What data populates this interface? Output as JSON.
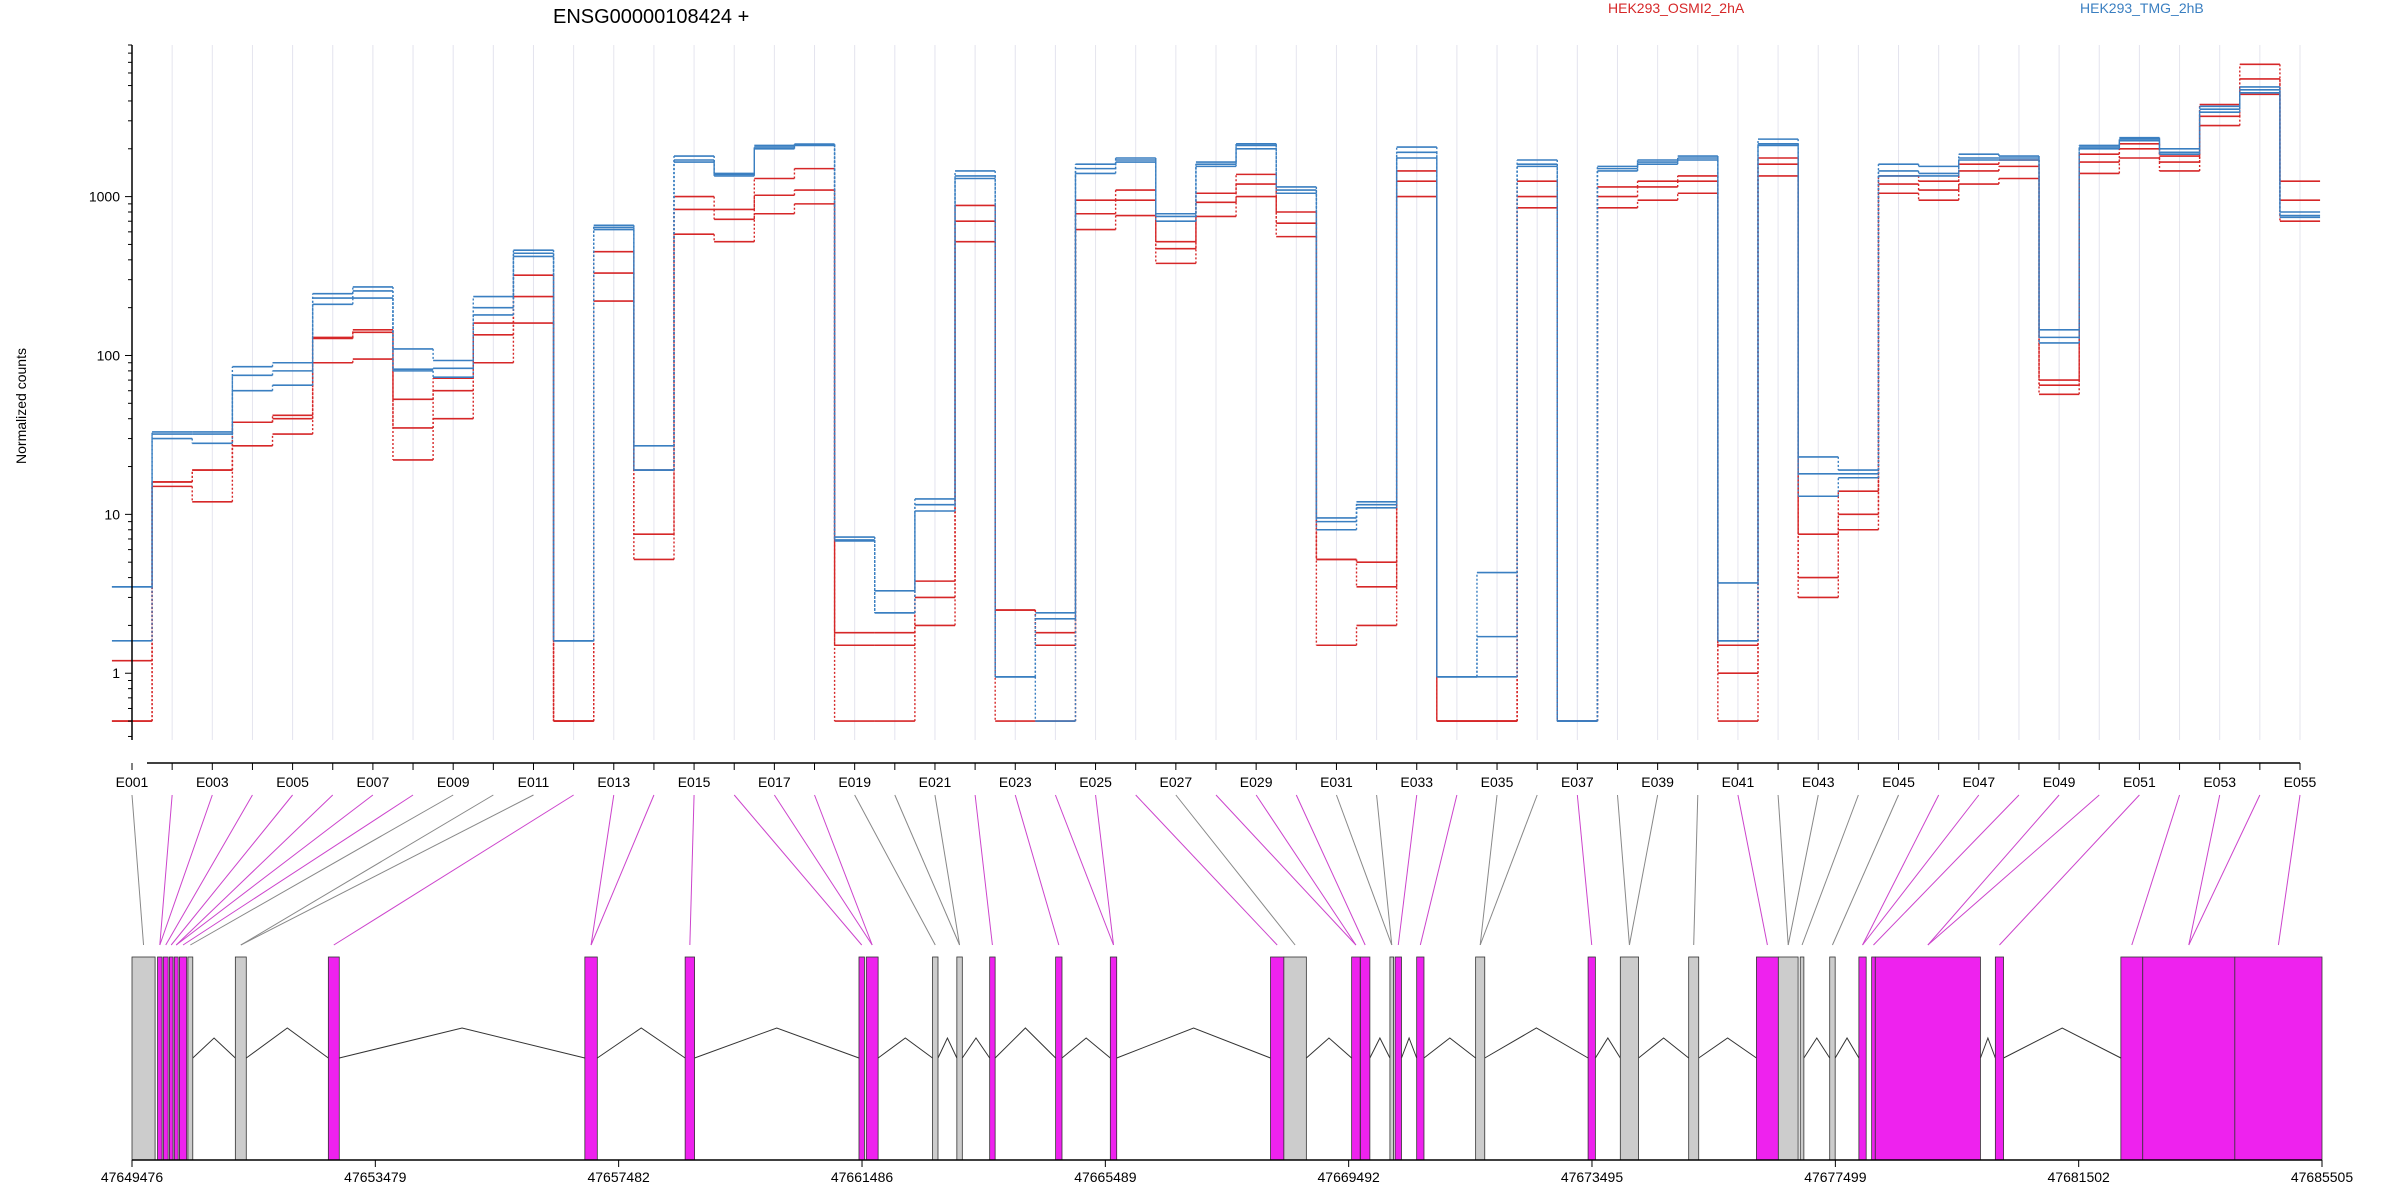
{
  "colors": {
    "group_a": "#d62728",
    "group_b": "#3a7fc1",
    "highlight": "#ee22ee",
    "plain": "#cccccc",
    "intron": "#333333",
    "grid": "#e4e4ee"
  },
  "chart_data": {
    "type": "line",
    "title": "ENSG00000108424 +",
    "ylabel": "Normalized counts",
    "xlabel": "",
    "yscale": "log",
    "ylim": [
      0.38,
      9000
    ],
    "yticks": [
      {
        "value": 1,
        "label": "1"
      },
      {
        "value": 10,
        "label": "10"
      },
      {
        "value": 100,
        "label": "100"
      },
      {
        "value": 1000,
        "label": "1000"
      }
    ],
    "grid": true,
    "legend_position": "top-right",
    "legend": [
      {
        "name": "HEK293_OSMI2_2hA",
        "color": "#d62728"
      },
      {
        "name": "HEK293_TMG_2hB",
        "color": "#3a7fc1"
      }
    ],
    "exon_ids": [
      "E001",
      "E002",
      "E003",
      "E004",
      "E005",
      "E006",
      "E007",
      "E008",
      "E009",
      "E010",
      "E011",
      "E012",
      "E013",
      "E014",
      "E015",
      "E016",
      "E017",
      "E018",
      "E019",
      "E020",
      "E021",
      "E022",
      "E023",
      "E024",
      "E025",
      "E026",
      "E027",
      "E028",
      "E029",
      "E030",
      "E031",
      "E032",
      "E033",
      "E034",
      "E035",
      "E036",
      "E037",
      "E038",
      "E039",
      "E040",
      "E041",
      "E042",
      "E043",
      "E044",
      "E045",
      "E046",
      "E047",
      "E048",
      "E049",
      "E050",
      "E051",
      "E052",
      "E053",
      "E054",
      "E055"
    ],
    "exon_tick_labels": [
      "E001",
      "E003",
      "E005",
      "E007",
      "E009",
      "E011",
      "E013",
      "E015",
      "E017",
      "E019",
      "E021",
      "E023",
      "E025",
      "E027",
      "E029",
      "E031",
      "E033",
      "E035",
      "E037",
      "E039",
      "E041",
      "E043",
      "E045",
      "E047",
      "E049",
      "E051",
      "E053",
      "E055"
    ],
    "series": [
      {
        "group": "HEK293_OSMI2_2hA",
        "values": [
          0.5,
          15,
          12,
          27,
          32,
          90,
          95,
          22,
          40,
          90,
          160,
          0.5,
          220,
          5.2,
          580,
          520,
          780,
          900,
          0.5,
          0.5,
          2,
          520,
          0.5,
          0.5,
          620,
          760,
          380,
          750,
          1000,
          560,
          1.5,
          2,
          1000,
          0.5,
          0.5,
          850,
          0.5,
          850,
          950,
          1050,
          0.5,
          1350,
          3,
          8,
          1050,
          950,
          1200,
          1300,
          57,
          1400,
          1750,
          1450,
          2800,
          4400,
          700
        ]
      },
      {
        "group": "HEK293_OSMI2_2hA",
        "values": [
          1.2,
          16,
          19,
          38,
          40,
          128,
          140,
          35,
          60,
          135,
          235,
          0.5,
          330,
          7.5,
          830,
          720,
          1020,
          1100,
          1.5,
          1.5,
          3,
          700,
          2.5,
          1.5,
          780,
          950,
          470,
          920,
          1200,
          680,
          5.2,
          5,
          1250,
          0.5,
          0.5,
          1000,
          0.5,
          1000,
          1150,
          1250,
          1,
          1600,
          4,
          10,
          1200,
          1100,
          1450,
          1550,
          65,
          1650,
          2000,
          1650,
          3200,
          5500,
          950
        ]
      },
      {
        "group": "HEK293_OSMI2_2hA",
        "values": [
          0.5,
          16,
          19,
          38,
          42,
          130,
          145,
          53,
          72,
          160,
          320,
          0.5,
          450,
          19,
          1000,
          830,
          1300,
          1500,
          1.8,
          1.8,
          3.8,
          880,
          2.5,
          1.8,
          950,
          1100,
          520,
          1050,
          1380,
          800,
          5.2,
          3.5,
          1450,
          0.5,
          0.5,
          1250,
          0.5,
          1150,
          1250,
          1350,
          1.5,
          1750,
          7.5,
          14,
          1350,
          1250,
          1600,
          1700,
          70,
          1850,
          2150,
          1800,
          3800,
          6800,
          1250
        ]
      },
      {
        "group": "HEK293_TMG_2hB",
        "values": [
          3.5,
          30,
          28,
          60,
          65,
          210,
          230,
          80,
          73,
          180,
          420,
          1.6,
          620,
          19,
          1650,
          1350,
          2000,
          2100,
          6.8,
          3.3,
          10.5,
          1300,
          0.95,
          2.2,
          1400,
          1650,
          700,
          1550,
          2000,
          1050,
          8,
          11,
          1750,
          0.95,
          0.95,
          1550,
          0.5,
          1450,
          1600,
          1700,
          1.6,
          2100,
          13,
          17,
          1350,
          1350,
          1700,
          1700,
          120,
          2000,
          2250,
          1850,
          3400,
          4500,
          740
        ]
      },
      {
        "group": "HEK293_TMG_2hB",
        "values": [
          1.6,
          32,
          32,
          75,
          80,
          230,
          255,
          82,
          83,
          200,
          440,
          1.6,
          640,
          19,
          1700,
          1380,
          2050,
          2120,
          6.9,
          2.4,
          11.5,
          1350,
          0.95,
          0.5,
          1500,
          1700,
          750,
          1600,
          2100,
          1100,
          9,
          11.5,
          1900,
          0.95,
          1.7,
          1600,
          0.5,
          1500,
          1650,
          1750,
          1.6,
          2150,
          18,
          18,
          1450,
          1400,
          1750,
          1750,
          130,
          2050,
          2300,
          1900,
          3550,
          4700,
          760
        ]
      },
      {
        "group": "HEK293_TMG_2hB",
        "values": [
          3.5,
          33,
          33,
          85,
          90,
          245,
          270,
          110,
          93,
          235,
          460,
          1.6,
          660,
          27,
          1800,
          1400,
          2100,
          2140,
          7.2,
          2.4,
          12.5,
          1450,
          0.95,
          2.4,
          1600,
          1750,
          780,
          1650,
          2150,
          1150,
          9.5,
          12,
          2050,
          0.95,
          4.3,
          1700,
          0.5,
          1550,
          1700,
          1800,
          3.7,
          2300,
          23,
          19,
          1600,
          1550,
          1850,
          1800,
          145,
          2100,
          2350,
          2000,
          3700,
          4900,
          800
        ]
      }
    ],
    "genomic_axis": {
      "range": [
        47649476,
        47685505
      ],
      "tick_labels": [
        "47649476",
        "47653479",
        "47657482",
        "47661486",
        "47665489",
        "47669492",
        "47673495",
        "47677499",
        "47681502",
        "47685505"
      ]
    },
    "exon_track": [
      {
        "start": 47649476,
        "end": 47649856,
        "highlight": false
      },
      {
        "start": 47649896,
        "end": 47649971,
        "highlight": true
      },
      {
        "start": 47649991,
        "end": 47650071,
        "highlight": true
      },
      {
        "start": 47650091,
        "end": 47650151,
        "highlight": true
      },
      {
        "start": 47650171,
        "end": 47650236,
        "highlight": true
      },
      {
        "start": 47650256,
        "end": 47650376,
        "highlight": true
      },
      {
        "start": 47650396,
        "end": 47650476,
        "highlight": false
      },
      {
        "start": 47651176,
        "end": 47651356,
        "highlight": false
      },
      {
        "start": 47652706,
        "end": 47652886,
        "highlight": true
      },
      {
        "start": 47656926,
        "end": 47657131,
        "highlight": true
      },
      {
        "start": 47658576,
        "end": 47658731,
        "highlight": true
      },
      {
        "start": 47661436,
        "end": 47661526,
        "highlight": true
      },
      {
        "start": 47661556,
        "end": 47661751,
        "highlight": true
      },
      {
        "start": 47662646,
        "end": 47662736,
        "highlight": false
      },
      {
        "start": 47663046,
        "end": 47663136,
        "highlight": false
      },
      {
        "start": 47663586,
        "end": 47663676,
        "highlight": true
      },
      {
        "start": 47664671,
        "end": 47664776,
        "highlight": true
      },
      {
        "start": 47665571,
        "end": 47665676,
        "highlight": true
      },
      {
        "start": 47668206,
        "end": 47668426,
        "highlight": true
      },
      {
        "start": 47668426,
        "end": 47668796,
        "highlight": false
      },
      {
        "start": 47669541,
        "end": 47669681,
        "highlight": true
      },
      {
        "start": 47669686,
        "end": 47669841,
        "highlight": true
      },
      {
        "start": 47670171,
        "end": 47670231,
        "highlight": false
      },
      {
        "start": 47670256,
        "end": 47670361,
        "highlight": true
      },
      {
        "start": 47670611,
        "end": 47670731,
        "highlight": true
      },
      {
        "start": 47671581,
        "end": 47671731,
        "highlight": false
      },
      {
        "start": 47673431,
        "end": 47673551,
        "highlight": true
      },
      {
        "start": 47673961,
        "end": 47674261,
        "highlight": false
      },
      {
        "start": 47675086,
        "end": 47675251,
        "highlight": false
      },
      {
        "start": 47676201,
        "end": 47676561,
        "highlight": true
      },
      {
        "start": 47676561,
        "end": 47676886,
        "highlight": false
      },
      {
        "start": 47676921,
        "end": 47676981,
        "highlight": false
      },
      {
        "start": 47677406,
        "end": 47677496,
        "highlight": false
      },
      {
        "start": 47677886,
        "end": 47678006,
        "highlight": true
      },
      {
        "start": 47678096,
        "end": 47678156,
        "highlight": true
      },
      {
        "start": 47678156,
        "end": 47679886,
        "highlight": true
      },
      {
        "start": 47680131,
        "end": 47680266,
        "highlight": true
      },
      {
        "start": 47682196,
        "end": 47682556,
        "highlight": true
      },
      {
        "start": 47682556,
        "end": 47684071,
        "highlight": true
      },
      {
        "start": 47684071,
        "end": 47685505,
        "highlight": true
      }
    ]
  }
}
